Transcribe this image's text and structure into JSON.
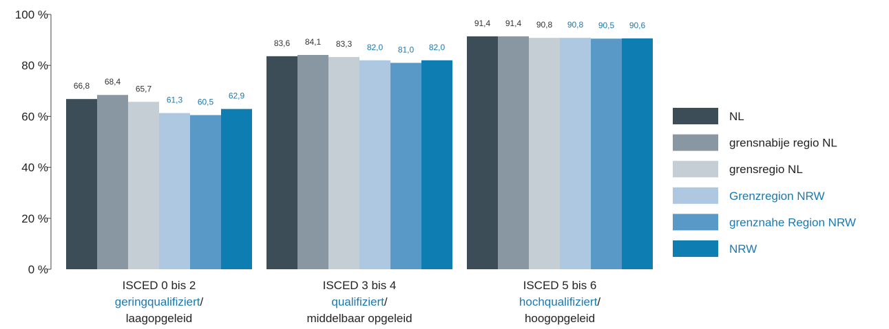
{
  "chart_data": {
    "type": "bar",
    "categories": [
      {
        "line1": "ISCED 0 bis 2",
        "line2_de": "geringqualifiziert",
        "line2_sep": "/",
        "line3": "laagopgeleid"
      },
      {
        "line1": "ISCED 3 bis 4",
        "line2_de": "qualifiziert",
        "line2_sep": "/",
        "line3": "middelbaar opgeleid"
      },
      {
        "line1": "ISCED 5 bis 6",
        "line2_de": "hochqualifiziert",
        "line2_sep": "/",
        "line3": "hoogopgeleid"
      }
    ],
    "series": [
      {
        "name": "NL",
        "color": "#3c4d57",
        "label_color": "#333333",
        "values": [
          66.8,
          83.6,
          91.4
        ],
        "labels": [
          "66,8",
          "83,6",
          "91,4"
        ]
      },
      {
        "name": "grensnabije regio NL",
        "color": "#8897a1",
        "label_color": "#333333",
        "values": [
          68.4,
          84.1,
          91.4
        ],
        "labels": [
          "68,4",
          "84,1",
          "91,4"
        ]
      },
      {
        "name": "grensregio NL",
        "color": "#c5ced4",
        "label_color": "#333333",
        "values": [
          65.7,
          83.3,
          90.8
        ],
        "labels": [
          "65,7",
          "83,3",
          "90,8"
        ]
      },
      {
        "name": "Grenzregion NRW",
        "color": "#afc8e1",
        "label_color": "#1b79b0",
        "values": [
          61.3,
          82.0,
          90.8
        ],
        "labels": [
          "61,3",
          "82,0",
          "90,8"
        ]
      },
      {
        "name": "grenznahe Region NRW",
        "color": "#5899c8",
        "label_color": "#1b79b0",
        "values": [
          60.5,
          81.0,
          90.5
        ],
        "labels": [
          "60,5",
          "81,0",
          "90,5"
        ]
      },
      {
        "name": "NRW",
        "color": "#0e7db1",
        "label_color": "#1b79b0",
        "values": [
          62.9,
          82.0,
          90.6
        ],
        "labels": [
          "62,9",
          "82,0",
          "90,6"
        ]
      }
    ],
    "y_ticks": [
      {
        "value": 0,
        "label": "0 %"
      },
      {
        "value": 20,
        "label": "20 %"
      },
      {
        "value": 40,
        "label": "40 %"
      },
      {
        "value": 60,
        "label": "60 %"
      },
      {
        "value": 80,
        "label": "80 %"
      },
      {
        "value": 100,
        "label": "100 %"
      }
    ],
    "ylim": [
      0,
      100
    ],
    "grid": false,
    "legend_position": "right",
    "colors": {
      "category_de": "#1b79b0",
      "category_nl": "#222222",
      "legend_de": "#1b79b0",
      "legend_nl": "#222222"
    }
  }
}
